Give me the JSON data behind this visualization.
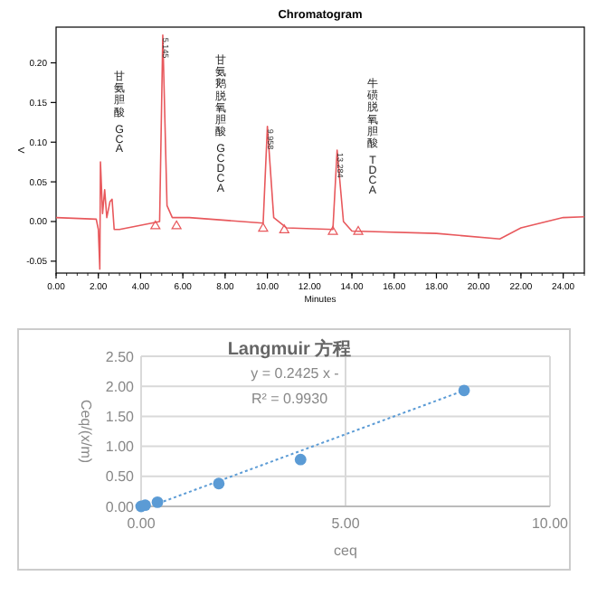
{
  "chart_data": [
    {
      "type": "line",
      "title": "Chromatogram",
      "xlabel": "Minutes",
      "ylabel": "V",
      "xlim": [
        0,
        25
      ],
      "ylim": [
        -0.065,
        0.245
      ],
      "xticks": [
        {
          "value": 0,
          "label": "0.00"
        },
        {
          "value": 2,
          "label": "2.00"
        },
        {
          "value": 4,
          "label": "4.00"
        },
        {
          "value": 6,
          "label": "6.00"
        },
        {
          "value": 8,
          "label": "8.00"
        },
        {
          "value": 10,
          "label": "10.00"
        },
        {
          "value": 12,
          "label": "12.00"
        },
        {
          "value": 14,
          "label": "14.00"
        },
        {
          "value": 16,
          "label": "16.00"
        },
        {
          "value": 18,
          "label": "18.00"
        },
        {
          "value": 20,
          "label": "20.00"
        },
        {
          "value": 22,
          "label": "22.00"
        },
        {
          "value": 24,
          "label": "24.00"
        }
      ],
      "yticks": [
        {
          "value": -0.05,
          "label": "-0.05"
        },
        {
          "value": 0,
          "label": "0.00"
        },
        {
          "value": 0.05,
          "label": "0.05"
        },
        {
          "value": 0.1,
          "label": "0.10"
        },
        {
          "value": 0.15,
          "label": "0.15"
        },
        {
          "value": 0.2,
          "label": "0.20"
        }
      ],
      "grid": false,
      "series": [
        {
          "color": "#e8585c",
          "x": [
            0,
            1.9,
            2.0,
            2.07,
            2.1,
            2.2,
            2.3,
            2.4,
            2.55,
            2.65,
            2.75,
            3.0,
            4.9,
            5.05,
            5.25,
            5.5,
            6.3,
            9.8,
            10.0,
            10.3,
            10.9,
            13.1,
            13.3,
            13.6,
            14.0,
            18,
            21,
            22,
            24,
            25
          ],
          "values": [
            0.005,
            0.003,
            -0.01,
            -0.06,
            0.075,
            0.01,
            0.04,
            0.005,
            0.025,
            0.028,
            -0.01,
            -0.01,
            0.0,
            0.235,
            0.02,
            0.005,
            0.005,
            -0.002,
            0.12,
            0.005,
            -0.008,
            -0.01,
            0.09,
            0.0,
            -0.012,
            -0.015,
            -0.022,
            -0.008,
            0.005,
            0.006
          ]
        },
        {
          "type": "scatter",
          "marker": "triangle",
          "color": "#e8585c",
          "x": [
            4.7,
            5.7,
            9.8,
            10.8,
            13.1,
            14.3
          ],
          "values": [
            -0.005,
            -0.005,
            -0.008,
            -0.01,
            -0.012,
            -0.012
          ]
        }
      ],
      "annotations": [
        {
          "text": "5.145",
          "x": 5.05,
          "y": 0.235
        },
        {
          "text": "9.958",
          "x": 10.0,
          "y": 0.12
        },
        {
          "text": "13.284",
          "x": 13.3,
          "y": 0.09
        },
        "甘氨胆酸 GCA",
        "甘氨鹅脱氧胆酸 GCDCA",
        "牛磺脱氧胆酸 TDCA"
      ]
    },
    {
      "type": "scatter",
      "title": "Langmuir 方程",
      "xlabel": "ceq",
      "ylabel": "Ceq/(x/m)",
      "xlim": [
        0,
        10
      ],
      "ylim": [
        0,
        2.5
      ],
      "xticks": [
        {
          "value": 0,
          "label": "0.00"
        },
        {
          "value": 5,
          "label": "5.00"
        },
        {
          "value": 10,
          "label": "10.00"
        }
      ],
      "yticks": [
        {
          "value": 0,
          "label": "0.00"
        },
        {
          "value": 0.5,
          "label": "0.50"
        },
        {
          "value": 1,
          "label": "1.00"
        },
        {
          "value": 1.5,
          "label": "1.50"
        },
        {
          "value": 2,
          "label": "2.00"
        },
        {
          "value": 2.5,
          "label": "2.50"
        }
      ],
      "grid": true,
      "series": [
        {
          "marker": "circle",
          "color": "#5b9bd5",
          "x": [
            0.0,
            0.1,
            0.4,
            1.9,
            3.9,
            7.9
          ],
          "values": [
            0.0,
            0.02,
            0.07,
            0.38,
            0.78,
            1.93
          ]
        },
        {
          "type": "line",
          "line_style": "dotted",
          "color": "#5b9bd5",
          "x": [
            0.3,
            7.9
          ],
          "values": [
            0.02,
            1.93
          ]
        }
      ],
      "annotations": [
        "y = 0.2425 x -",
        "R² = 0.9930"
      ]
    }
  ]
}
